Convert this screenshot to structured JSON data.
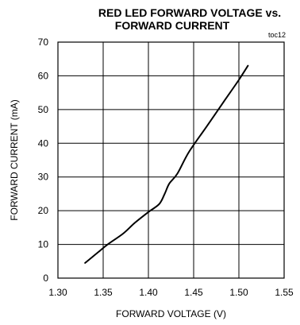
{
  "chart_data": {
    "type": "line",
    "title_line1": "RED LED FORWARD VOLTAGE vs.",
    "title_line2": "FORWARD CURRENT",
    "tag": "toc12",
    "xlabel": "FORWARD VOLTAGE (V)",
    "ylabel": "FORWARD CURRENT (mA)",
    "xlim": [
      1.3,
      1.55
    ],
    "ylim": [
      0,
      70
    ],
    "x_ticks": [
      "1.30",
      "1.35",
      "1.40",
      "1.45",
      "1.50",
      "1.55"
    ],
    "y_ticks": [
      "0",
      "10",
      "20",
      "30",
      "40",
      "50",
      "60",
      "70"
    ],
    "grid": true,
    "series": [
      {
        "x": [
          1.33,
          1.345,
          1.355,
          1.372,
          1.385,
          1.4,
          1.412,
          1.418,
          1.423,
          1.432,
          1.445,
          1.465,
          1.485,
          1.5,
          1.51
        ],
        "y": [
          4.5,
          7.8,
          10.0,
          13.2,
          16.4,
          19.6,
          22.0,
          25.0,
          28.0,
          31.0,
          37.5,
          45.2,
          53.0,
          58.8,
          63.0
        ]
      }
    ]
  }
}
